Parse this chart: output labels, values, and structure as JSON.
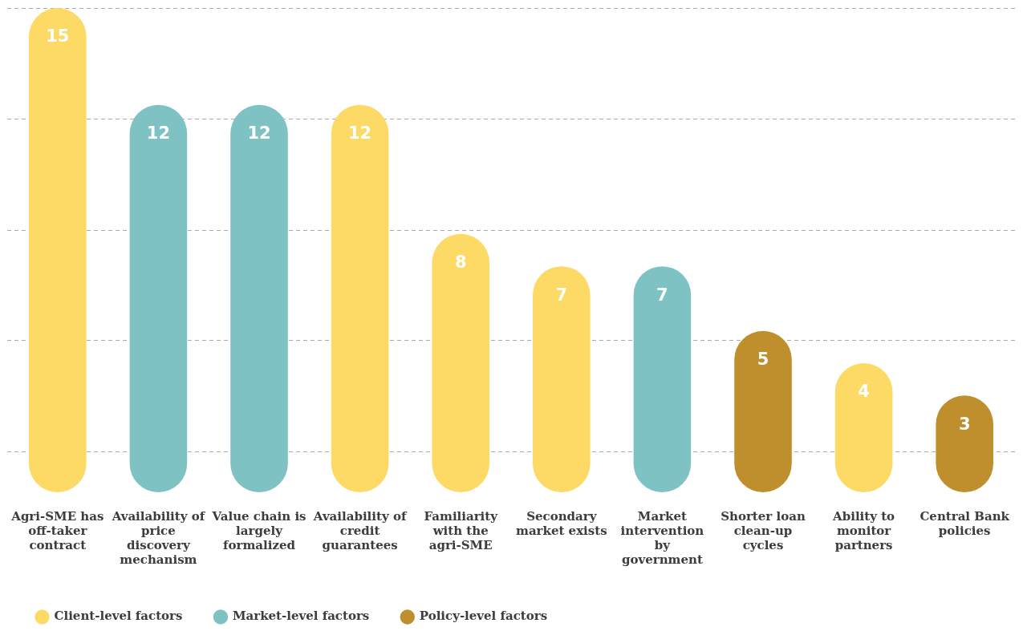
{
  "chart_data": {
    "type": "bar",
    "categories": [
      "Agri-SME has off-taker contract",
      "Availability of price discovery mechanism",
      "Value chain is largely formalized",
      "Availability of credit guarantees",
      "Familiarity with the agri-SME",
      "Secondary market exists",
      "Market intervention by government",
      "Shorter loan clean-up cycles",
      "Ability to monitor partners",
      "Central Bank policies"
    ],
    "series": [
      {
        "name": "Client-level factors",
        "color": "#fdd966",
        "values": [
          15,
          null,
          null,
          12,
          8,
          7,
          null,
          null,
          4,
          null
        ]
      },
      {
        "name": "Market-level factors",
        "color": "#7fc2c3",
        "values": [
          null,
          12,
          12,
          null,
          null,
          null,
          7,
          null,
          null,
          null
        ]
      },
      {
        "name": "Policy-level factors",
        "color": "#bf8f2e",
        "values": [
          null,
          null,
          null,
          null,
          null,
          null,
          null,
          5,
          null,
          3
        ]
      }
    ],
    "ylim": [
      0,
      15
    ],
    "yticks": [
      {
        "value": 1.25,
        "label": null
      },
      {
        "value": 4.7,
        "label": null
      },
      {
        "value": 8.1,
        "label": null
      },
      {
        "value": 11.55,
        "label": null
      },
      {
        "value": 15,
        "label": null
      }
    ],
    "grid": "y",
    "data_labels": true,
    "legend": "bottom left",
    "tick_labels": "x"
  }
}
